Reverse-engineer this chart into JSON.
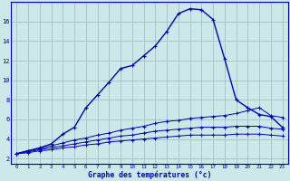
{
  "x": [
    0,
    1,
    2,
    3,
    4,
    5,
    6,
    7,
    8,
    9,
    10,
    11,
    12,
    13,
    14,
    15,
    16,
    17,
    18,
    19,
    20,
    21,
    22,
    23
  ],
  "temp_main": [
    2.5,
    2.8,
    3.1,
    3.5,
    4.5,
    5.2,
    7.2,
    8.5,
    9.8,
    11.2,
    11.5,
    12.5,
    13.5,
    15.0,
    16.8,
    17.3,
    17.2,
    16.2,
    12.2,
    8.0,
    7.2,
    6.5,
    6.3,
    5.2
  ],
  "temp_line2": [
    2.5,
    2.8,
    3.0,
    3.3,
    3.6,
    3.9,
    4.1,
    4.4,
    4.6,
    4.9,
    5.1,
    5.3,
    5.6,
    5.8,
    5.9,
    6.1,
    6.2,
    6.3,
    6.4,
    6.6,
    6.9,
    7.2,
    6.4,
    6.2
  ],
  "temp_line3": [
    2.5,
    2.7,
    2.9,
    3.1,
    3.3,
    3.5,
    3.7,
    3.9,
    4.1,
    4.3,
    4.4,
    4.6,
    4.8,
    4.9,
    5.0,
    5.1,
    5.2,
    5.2,
    5.2,
    5.3,
    5.3,
    5.3,
    5.1,
    5.0
  ],
  "temp_line4": [
    2.5,
    2.6,
    2.8,
    2.9,
    3.1,
    3.2,
    3.4,
    3.5,
    3.7,
    3.8,
    3.9,
    4.0,
    4.1,
    4.2,
    4.3,
    4.4,
    4.4,
    4.4,
    4.4,
    4.5,
    4.5,
    4.5,
    4.4,
    4.3
  ],
  "bg_color": "#cce8e8",
  "line_color": "#0000cc",
  "grid_color": "#99bbbb",
  "xlabel": "Graphe des températures (°c)",
  "xlim": [
    -0.5,
    23.5
  ],
  "ylim": [
    1.5,
    18.0
  ],
  "yticks": [
    2,
    4,
    6,
    8,
    10,
    12,
    14,
    16
  ],
  "xticks": [
    0,
    1,
    2,
    3,
    4,
    5,
    6,
    7,
    8,
    9,
    10,
    11,
    12,
    13,
    14,
    15,
    16,
    17,
    18,
    19,
    20,
    21,
    22,
    23
  ]
}
